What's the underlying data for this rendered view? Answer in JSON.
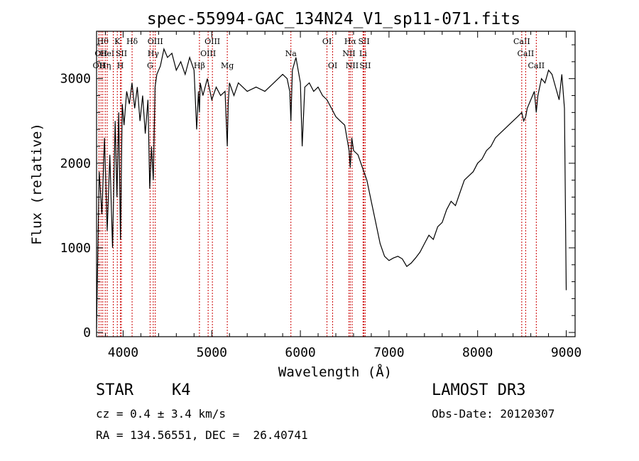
{
  "chart_data": {
    "type": "line",
    "title": "spec-55994-GAC_134N24_V1_sp11-071.fits",
    "xlabel": "Wavelength (Å)",
    "ylabel": "Flux (relative)",
    "xlim": [
      3700,
      9100
    ],
    "ylim": [
      -50,
      3560
    ],
    "xticks": [
      4000,
      5000,
      6000,
      7000,
      8000,
      9000
    ],
    "yticks": [
      0,
      1000,
      2000,
      3000
    ],
    "grid": false,
    "line_color": "#000000",
    "marker_color": "#cc0000",
    "series": [
      {
        "x": [
          3700,
          3730,
          3760,
          3790,
          3820,
          3850,
          3880,
          3910,
          3930,
          3950,
          3970,
          3990,
          4010,
          4040,
          4070,
          4100,
          4130,
          4160,
          4190,
          4220,
          4250,
          4280,
          4300,
          4320,
          4340,
          4360,
          4380,
          4420,
          4460,
          4500,
          4550,
          4600,
          4650,
          4700,
          4750,
          4800,
          4830,
          4850,
          4861,
          4870,
          4900,
          4950,
          5000,
          5050,
          5100,
          5150,
          5175,
          5185,
          5200,
          5250,
          5300,
          5400,
          5500,
          5600,
          5700,
          5800,
          5850,
          5880,
          5893,
          5910,
          5950,
          6000,
          6020,
          6050,
          6100,
          6150,
          6200,
          6250,
          6300,
          6350,
          6400,
          6450,
          6500,
          6550,
          6563,
          6580,
          6600,
          6650,
          6700,
          6750,
          6800,
          6850,
          6900,
          6950,
          7000,
          7050,
          7100,
          7150,
          7200,
          7250,
          7300,
          7350,
          7400,
          7450,
          7500,
          7550,
          7600,
          7650,
          7700,
          7750,
          7800,
          7850,
          7900,
          7950,
          8000,
          8050,
          8100,
          8150,
          8200,
          8250,
          8300,
          8350,
          8400,
          8450,
          8498,
          8520,
          8542,
          8560,
          8600,
          8640,
          8662,
          8680,
          8720,
          8760,
          8800,
          8840,
          8880,
          8920,
          8950,
          8980,
          9000
        ],
        "y": [
          50,
          1900,
          1400,
          2300,
          1200,
          2100,
          1000,
          2500,
          1600,
          2600,
          1100,
          2700,
          2450,
          2850,
          2700,
          2950,
          2650,
          2900,
          2500,
          2800,
          2350,
          2750,
          1700,
          2200,
          1800,
          2900,
          3050,
          3150,
          3350,
          3250,
          3300,
          3100,
          3200,
          3050,
          3250,
          3100,
          2400,
          2850,
          2600,
          2950,
          2800,
          3000,
          2750,
          2900,
          2800,
          2850,
          2200,
          2700,
          2950,
          2800,
          2950,
          2850,
          2900,
          2850,
          2950,
          3050,
          3000,
          2850,
          2500,
          3100,
          3250,
          2950,
          2200,
          2900,
          2950,
          2850,
          2900,
          2800,
          2750,
          2650,
          2550,
          2500,
          2450,
          2150,
          1950,
          2300,
          2150,
          2100,
          1950,
          1800,
          1550,
          1300,
          1050,
          900,
          850,
          880,
          900,
          870,
          780,
          820,
          880,
          950,
          1050,
          1150,
          1100,
          1250,
          1300,
          1450,
          1550,
          1500,
          1650,
          1800,
          1850,
          1900,
          2000,
          2050,
          2150,
          2200,
          2300,
          2350,
          2400,
          2450,
          2500,
          2550,
          2600,
          2500,
          2550,
          2650,
          2750,
          2850,
          2600,
          2800,
          3000,
          2950,
          3100,
          3050,
          2900,
          2750,
          3050,
          2650,
          500
        ]
      }
    ],
    "markers": [
      {
        "x": 3727,
        "label": "OII",
        "row": 2
      },
      {
        "x": 3750,
        "label": "OII",
        "row": 1
      },
      {
        "x": 3770,
        "label": "Hθ",
        "row": 0
      },
      {
        "x": 3798,
        "label": "Hη",
        "row": 2
      },
      {
        "x": 3820,
        "label": "HeI",
        "row": 1
      },
      {
        "x": 3889,
        "label": "",
        "row": -1
      },
      {
        "x": 3934,
        "label": "K",
        "row": 0
      },
      {
        "x": 3969,
        "label": "H",
        "row": 2
      },
      {
        "x": 3980,
        "label": "SII",
        "row": 1
      },
      {
        "x": 4101,
        "label": "Hδ",
        "row": 0
      },
      {
        "x": 4304,
        "label": "G",
        "row": 2
      },
      {
        "x": 4340,
        "label": "Hγ",
        "row": 1
      },
      {
        "x": 4363,
        "label": "OIII",
        "row": 0
      },
      {
        "x": 4861,
        "label": "Hβ",
        "row": 2
      },
      {
        "x": 4959,
        "label": "OIII",
        "row": 1
      },
      {
        "x": 5007,
        "label": "OIII",
        "row": 0
      },
      {
        "x": 5175,
        "label": "Mg",
        "row": 2
      },
      {
        "x": 5893,
        "label": "Na",
        "row": 1
      },
      {
        "x": 6300,
        "label": "OI",
        "row": 0
      },
      {
        "x": 6364,
        "label": "OI",
        "row": 2
      },
      {
        "x": 6548,
        "label": "NII",
        "row": 1
      },
      {
        "x": 6563,
        "label": "Hα",
        "row": 0
      },
      {
        "x": 6584,
        "label": "NII",
        "row": 2
      },
      {
        "x": 6707,
        "label": "Li",
        "row": 1
      },
      {
        "x": 6717,
        "label": "SII",
        "row": 0
      },
      {
        "x": 6731,
        "label": "SII",
        "row": 2
      },
      {
        "x": 8498,
        "label": "CaII",
        "row": 0
      },
      {
        "x": 8542,
        "label": "CaII",
        "row": 1
      },
      {
        "x": 8662,
        "label": "CaII",
        "row": 2
      }
    ]
  },
  "info": {
    "class_label": "STAR",
    "subclass": "K4",
    "survey": "LAMOST DR3",
    "redshift": "cz = 0.4 ± 3.4 km/s",
    "obs_date": "Obs-Date: 20120307",
    "coords": "RA = 134.56551, DEC =  26.40741"
  }
}
